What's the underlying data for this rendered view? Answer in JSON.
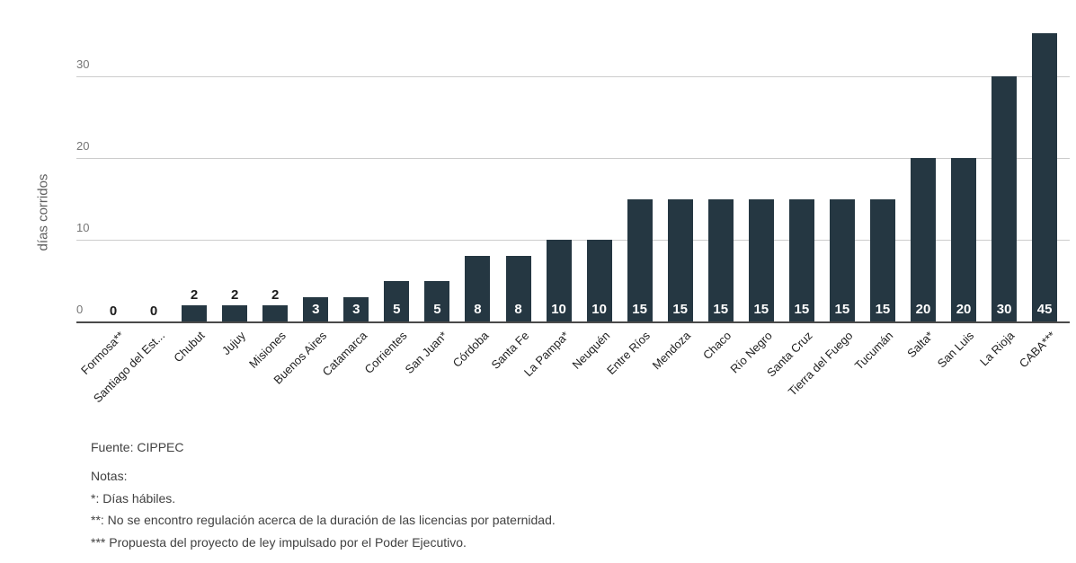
{
  "chart_data": {
    "type": "bar",
    "title": "",
    "xlabel": "",
    "ylabel": "días corridos",
    "categories": [
      "Formosa**",
      "Santiago del Est...",
      "Chubut",
      "Jujuy",
      "Misiones",
      "Buenos Aires",
      "Catamarca",
      "Corrientes",
      "San Juan*",
      "Córdoba",
      "Santa Fe",
      "La Pampa*",
      "Neuquén",
      "Entre Ríos",
      "Mendoza",
      "Chaco",
      "Río Negro",
      "Santa Cruz",
      "Tierra del Fuego",
      "Tucumán",
      "Salta*",
      "San Luis",
      "La Rioja",
      "CABA***"
    ],
    "values": [
      0,
      0,
      2,
      2,
      2,
      3,
      3,
      5,
      5,
      8,
      8,
      10,
      10,
      15,
      15,
      15,
      15,
      15,
      15,
      15,
      20,
      20,
      30,
      45
    ],
    "yticks": [
      0,
      10,
      20,
      30
    ],
    "ylim": [
      0,
      35.3
    ],
    "grid": true,
    "legend_position": "none",
    "bar_color": "#253742",
    "annotation_inside_color": "#ffffff",
    "annotation_outside_color": "#1c1c1c",
    "gridline_color": "#cccccc",
    "baseline_color": "#4a4a4a",
    "tick_color": "#757575"
  },
  "notes": {
    "source": "Fuente: CIPPEC",
    "title": "Notas:",
    "lines": [
      "*: Días hábiles.",
      "**: No se encontro regulación acerca de la duración de las licencias por paternidad.",
      "*** Propuesta del proyecto de ley impulsado por el Poder Ejecutivo."
    ]
  }
}
